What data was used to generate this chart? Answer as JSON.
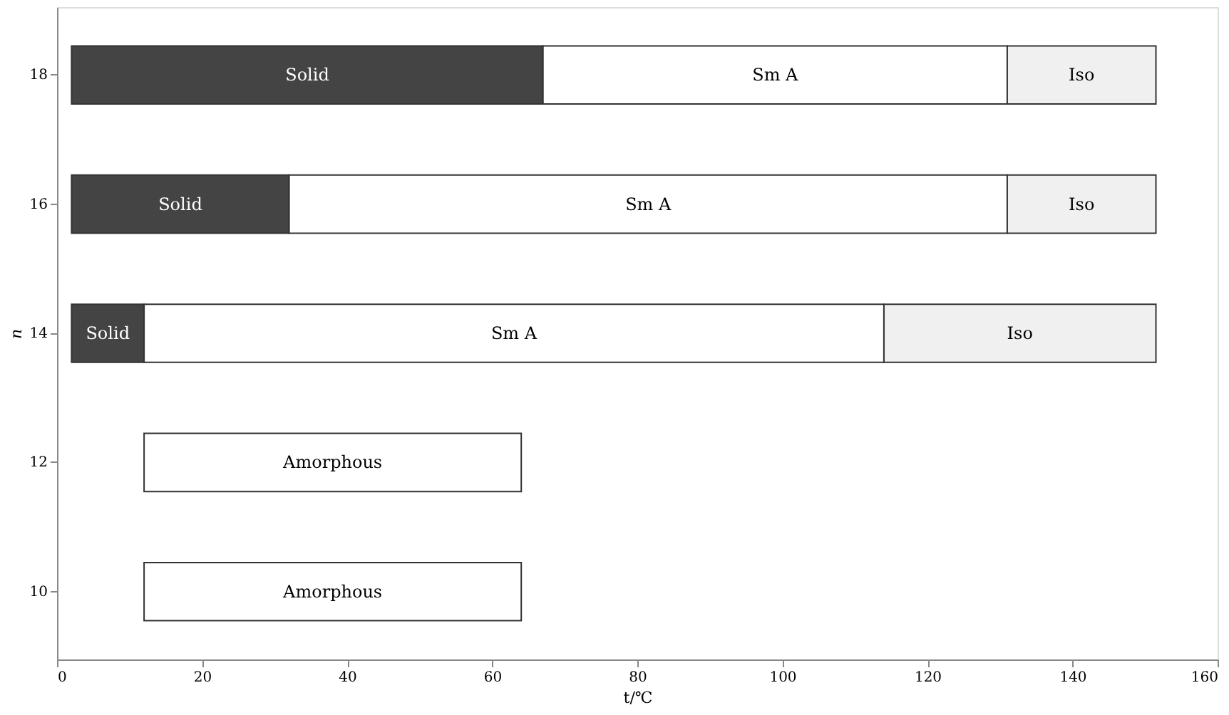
{
  "chart_data": {
    "type": "bar",
    "orientation": "horizontal",
    "xlabel": "t/℃",
    "ylabel": "n",
    "categories": [
      "18",
      "16",
      "14",
      "12",
      "10"
    ],
    "series": [
      {
        "name": "Solid",
        "color": "#444444",
        "base": [
          2,
          2,
          2,
          null,
          null
        ],
        "values": [
          65,
          30,
          10,
          null,
          null
        ]
      },
      {
        "name": "Sm A",
        "color": "#ffffff",
        "base": [
          67,
          32,
          12,
          null,
          null
        ],
        "values": [
          64,
          99,
          102,
          null,
          null
        ]
      },
      {
        "name": "Iso",
        "color": "#f0f0f0",
        "base": [
          131,
          131,
          114,
          null,
          null
        ],
        "values": [
          20.5,
          20.5,
          37.5,
          null,
          null
        ]
      },
      {
        "name": "Amorphous",
        "color": "#ffffff",
        "base": [
          null,
          null,
          null,
          12,
          12
        ],
        "values": [
          null,
          null,
          null,
          52,
          52
        ]
      }
    ],
    "xlim": [
      0,
      160
    ],
    "xticks": [
      0,
      20,
      40,
      60,
      80,
      100,
      120,
      140,
      160
    ],
    "grid": false,
    "legend": false
  }
}
